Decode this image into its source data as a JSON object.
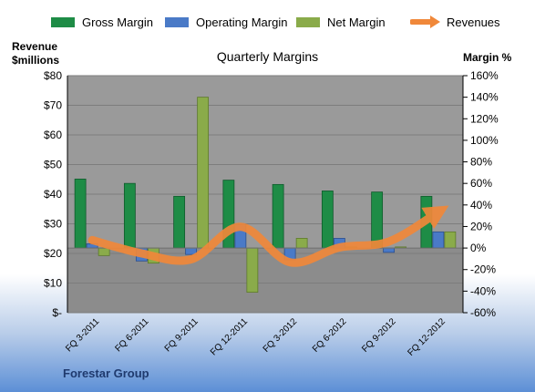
{
  "chart_data": {
    "type": "bar",
    "title": "Quarterly Margins",
    "categories": [
      "FQ 3-2011",
      "FQ 6-2011",
      "FQ 9-2011",
      "FQ 12-2011",
      "FQ 3-2012",
      "FQ 6-2012",
      "FQ 9-2012",
      "FQ 12-2012"
    ],
    "series": [
      {
        "name": "Gross Margin",
        "axis": "right",
        "values": [
          64,
          60,
          48,
          63,
          59,
          53,
          52,
          48
        ],
        "color": "#1e8c46"
      },
      {
        "name": "Operating Margin",
        "axis": "right",
        "values": [
          4,
          -12,
          -6,
          22,
          -11,
          9,
          -4,
          15
        ],
        "color": "#4a7ac7"
      },
      {
        "name": "Net Margin",
        "axis": "right",
        "values": [
          -7,
          -14,
          140,
          -41,
          9,
          1,
          1,
          15
        ],
        "color": "#8aab4a"
      },
      {
        "name": "Revenues",
        "axis": "left",
        "type": "line",
        "values": [
          24.5,
          20,
          18,
          29,
          17,
          22,
          24,
          34
        ],
        "color": "#f0883a"
      }
    ],
    "y_left": {
      "label_line1": "Revenue",
      "label_line2": "$millions",
      "min": 0,
      "max": 80,
      "ticks": [
        "$-",
        "$10",
        "$20",
        "$30",
        "$40",
        "$50",
        "$60",
        "$70",
        "$80"
      ]
    },
    "y_right": {
      "label": "Margin %",
      "min": -60,
      "max": 160,
      "ticks": [
        "-60%",
        "-40%",
        "-20%",
        "0%",
        "20%",
        "40%",
        "60%",
        "80%",
        "100%",
        "120%",
        "140%",
        "160%"
      ]
    },
    "legend_position": "top",
    "source_label": "Forestar Group"
  }
}
